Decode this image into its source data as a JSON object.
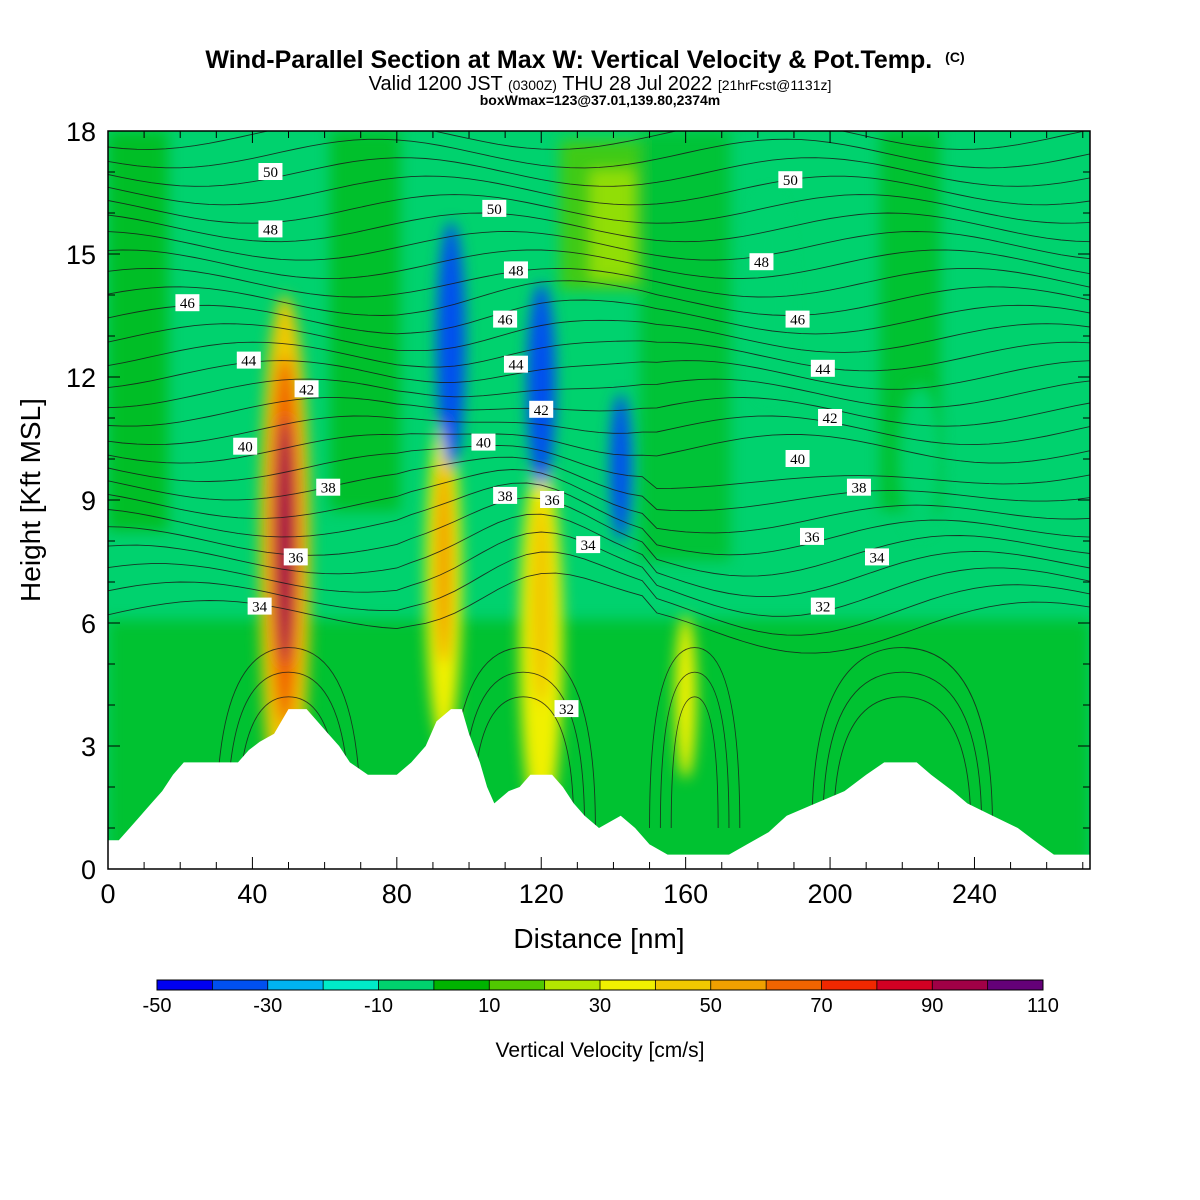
{
  "title": {
    "main": "Wind-Parallel Section at Max W: Vertical Velocity & Pot.Temp.",
    "copyright": "(C)",
    "valid_a": "Valid 1200 JST",
    "valid_b": "(0300Z)",
    "valid_c": "THU 28 Jul 2022",
    "valid_d": "[21hrFcst@1131z]",
    "box": "boxWmax=123@37.01,139.80,2374m"
  },
  "chart_data": {
    "type": "heatmap",
    "xlabel": "Distance [nm]",
    "ylabel": "Height [Kft MSL]",
    "xlim": [
      0,
      272
    ],
    "ylim": [
      0,
      18
    ],
    "xticks": [
      0,
      40,
      80,
      120,
      160,
      200,
      240
    ],
    "yticks": [
      0,
      3,
      6,
      9,
      12,
      15,
      18
    ],
    "colorbar": {
      "label": "Vertical Velocity [cm/s]",
      "tick_labels": [
        "-50",
        "-30",
        "-10",
        "10",
        "30",
        "50",
        "70",
        "90",
        "110"
      ],
      "bins": [
        -50,
        -40,
        -30,
        -20,
        -10,
        0,
        10,
        20,
        30,
        40,
        50,
        60,
        70,
        80,
        90,
        100,
        110
      ],
      "colors": [
        "#0000f0",
        "#0050f0",
        "#00b4f0",
        "#00ebc8",
        "#00d26e",
        "#00b400",
        "#50c800",
        "#b4e600",
        "#f0f000",
        "#f0c800",
        "#f0a000",
        "#f06400",
        "#f02800",
        "#d20023",
        "#a00046",
        "#640078"
      ]
    },
    "terrain_kft": [
      [
        0,
        0.7
      ],
      [
        3,
        0.7
      ],
      [
        6,
        1.0
      ],
      [
        9,
        1.3
      ],
      [
        12,
        1.6
      ],
      [
        15,
        1.9
      ],
      [
        18,
        2.3
      ],
      [
        21,
        2.6
      ],
      [
        36,
        2.6
      ],
      [
        39,
        2.9
      ],
      [
        42,
        3.1
      ],
      [
        46,
        3.3
      ],
      [
        50,
        3.9
      ],
      [
        55,
        3.9
      ],
      [
        58,
        3.6
      ],
      [
        61,
        3.3
      ],
      [
        64,
        3.0
      ],
      [
        67,
        2.6
      ],
      [
        72,
        2.3
      ],
      [
        80,
        2.3
      ],
      [
        84,
        2.6
      ],
      [
        88,
        3.0
      ],
      [
        91,
        3.6
      ],
      [
        95,
        3.9
      ],
      [
        98,
        3.9
      ],
      [
        100,
        3.3
      ],
      [
        103,
        2.6
      ],
      [
        105,
        2.0
      ],
      [
        107,
        1.6
      ],
      [
        111,
        1.9
      ],
      [
        114,
        2.0
      ],
      [
        117,
        2.3
      ],
      [
        123,
        2.3
      ],
      [
        126,
        2.0
      ],
      [
        129,
        1.6
      ],
      [
        132,
        1.3
      ],
      [
        136,
        1.0
      ],
      [
        142,
        1.3
      ],
      [
        146,
        1.0
      ],
      [
        150,
        0.6
      ],
      [
        155,
        0.35
      ],
      [
        165,
        0.35
      ],
      [
        172,
        0.35
      ],
      [
        177,
        0.6
      ],
      [
        183,
        0.9
      ],
      [
        188,
        1.3
      ],
      [
        196,
        1.6
      ],
      [
        204,
        1.9
      ],
      [
        210,
        2.3
      ],
      [
        215,
        2.6
      ],
      [
        224,
        2.6
      ],
      [
        228,
        2.3
      ],
      [
        234,
        1.9
      ],
      [
        238,
        1.6
      ],
      [
        245,
        1.3
      ],
      [
        252,
        1.0
      ],
      [
        258,
        0.6
      ],
      [
        262,
        0.35
      ],
      [
        272,
        0.35
      ]
    ],
    "w_field_cm_s": [
      {
        "x": 49,
        "y": 8.0,
        "rx": 2.5,
        "ry": 3.0,
        "w": 90
      },
      {
        "x": 49,
        "y": 8.0,
        "rx": 4.5,
        "ry": 4.5,
        "w": 60
      },
      {
        "x": 49,
        "y": 7.5,
        "rx": 7,
        "ry": 6.5,
        "w": 40
      },
      {
        "x": 93,
        "y": 7.5,
        "rx": 2.5,
        "ry": 2.5,
        "w": 50
      },
      {
        "x": 93,
        "y": 7.0,
        "rx": 5,
        "ry": 4,
        "w": 30
      },
      {
        "x": 120,
        "y": 6.5,
        "rx": 3,
        "ry": 2.5,
        "w": 40
      },
      {
        "x": 120,
        "y": 5.5,
        "rx": 6,
        "ry": 4.5,
        "w": 30
      },
      {
        "x": 160,
        "y": 4.2,
        "rx": 3,
        "ry": 2,
        "w": 30
      },
      {
        "x": 95,
        "y": 12.8,
        "rx": 4,
        "ry": 3,
        "w": -40
      },
      {
        "x": 120,
        "y": 11.8,
        "rx": 4,
        "ry": 2.5,
        "w": -40
      },
      {
        "x": 142,
        "y": 9.8,
        "rx": 3,
        "ry": 1.8,
        "w": -40
      },
      {
        "x": 183,
        "y": 14.0,
        "rx": 6,
        "ry": 2.5,
        "w": -10
      },
      {
        "x": 225,
        "y": 10.0,
        "rx": 6,
        "ry": 1.8,
        "w": -10
      }
    ],
    "theta_contour_labels": [
      {
        "x": 45,
        "y": 17.0,
        "text": "50"
      },
      {
        "x": 45,
        "y": 15.6,
        "text": "48"
      },
      {
        "x": 22,
        "y": 13.8,
        "text": "46"
      },
      {
        "x": 39,
        "y": 12.4,
        "text": "44"
      },
      {
        "x": 55,
        "y": 11.7,
        "text": "42"
      },
      {
        "x": 38,
        "y": 10.3,
        "text": "40"
      },
      {
        "x": 61,
        "y": 9.3,
        "text": "38"
      },
      {
        "x": 52,
        "y": 7.6,
        "text": "36"
      },
      {
        "x": 42,
        "y": 6.4,
        "text": "34"
      },
      {
        "x": 107,
        "y": 16.1,
        "text": "50"
      },
      {
        "x": 113,
        "y": 14.6,
        "text": "48"
      },
      {
        "x": 110,
        "y": 13.4,
        "text": "46"
      },
      {
        "x": 113,
        "y": 12.3,
        "text": "44"
      },
      {
        "x": 120,
        "y": 11.2,
        "text": "42"
      },
      {
        "x": 104,
        "y": 10.4,
        "text": "40"
      },
      {
        "x": 110,
        "y": 9.1,
        "text": "38"
      },
      {
        "x": 123,
        "y": 9.0,
        "text": "36"
      },
      {
        "x": 133,
        "y": 7.9,
        "text": "34"
      },
      {
        "x": 189,
        "y": 16.8,
        "text": "50"
      },
      {
        "x": 181,
        "y": 14.8,
        "text": "48"
      },
      {
        "x": 191,
        "y": 13.4,
        "text": "46"
      },
      {
        "x": 198,
        "y": 12.2,
        "text": "44"
      },
      {
        "x": 200,
        "y": 11.0,
        "text": "42"
      },
      {
        "x": 191,
        "y": 10.0,
        "text": "40"
      },
      {
        "x": 208,
        "y": 9.3,
        "text": "38"
      },
      {
        "x": 195,
        "y": 8.1,
        "text": "36"
      },
      {
        "x": 213,
        "y": 7.6,
        "text": "34"
      },
      {
        "x": 198,
        "y": 6.4,
        "text": "32"
      },
      {
        "x": 127,
        "y": 3.9,
        "text": "32"
      }
    ]
  }
}
